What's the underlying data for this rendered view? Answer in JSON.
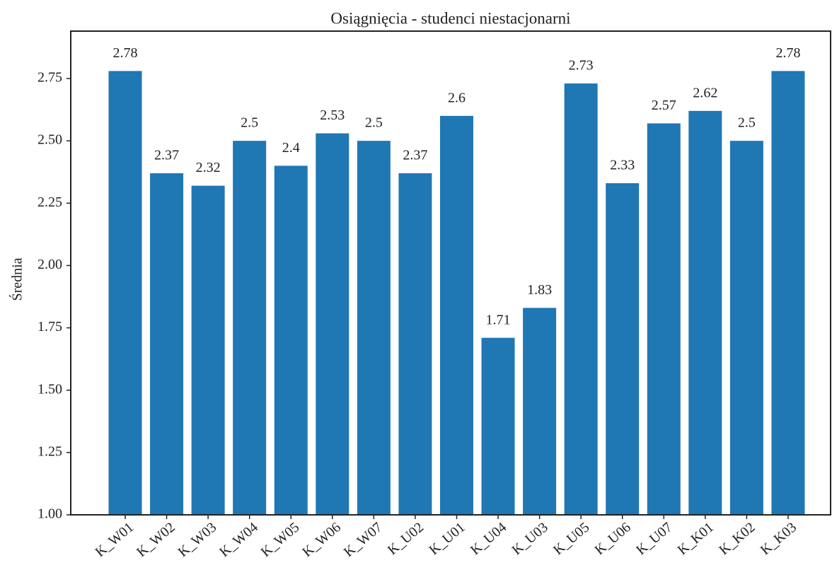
{
  "chart_data": {
    "type": "bar",
    "title": "Osiągnięcia - studenci niestacjonarni",
    "ylabel": "Średnia",
    "categories": [
      "K_W01",
      "K_W02",
      "K_W03",
      "K_W04",
      "K_W05",
      "K_W06",
      "K_W07",
      "K_U02",
      "K_U01",
      "K_U04",
      "K_U03",
      "K_U05",
      "K_U06",
      "K_U07",
      "K_K01",
      "K_K02",
      "K_K03"
    ],
    "values": [
      2.78,
      2.37,
      2.32,
      2.5,
      2.4,
      2.53,
      2.5,
      2.37,
      2.6,
      1.71,
      1.83,
      2.73,
      2.33,
      2.57,
      2.62,
      2.5,
      2.78
    ],
    "color": "#1f77b4",
    "ylim": [
      1,
      2.94
    ],
    "yticks": [
      {
        "value": 1,
        "label": "1.00"
      },
      1.25,
      {
        "value": 1.5,
        "label": "1.50"
      },
      1.75,
      {
        "value": 2,
        "label": "2.00"
      },
      2.25,
      {
        "value": 2.5,
        "label": "2.50"
      },
      2.75
    ],
    "grid": false
  }
}
